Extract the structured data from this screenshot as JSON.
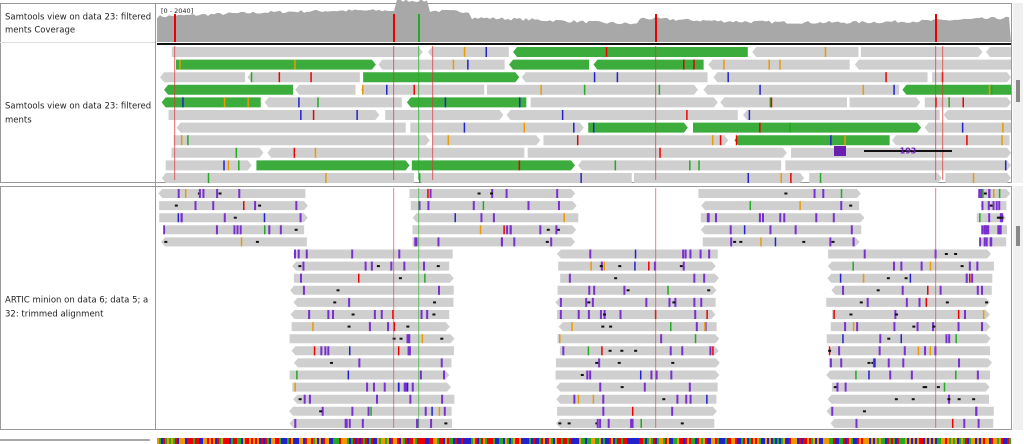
{
  "panels": [
    {
      "tracks": [
        {
          "name_lines": [
            "Samtools view on data 23: filtered",
            "ments Coverage"
          ],
          "data_range": "[0 - 2040]"
        },
        {
          "name_lines": [
            "Samtools view on data 23: filtered",
            "ments"
          ],
          "insertion_label": "193"
        }
      ]
    },
    {
      "tracks": [
        {
          "name_lines": [
            "ARTIC minion on data 6; data 5; a",
            "32: trimmed alignment"
          ]
        }
      ]
    }
  ]
}
